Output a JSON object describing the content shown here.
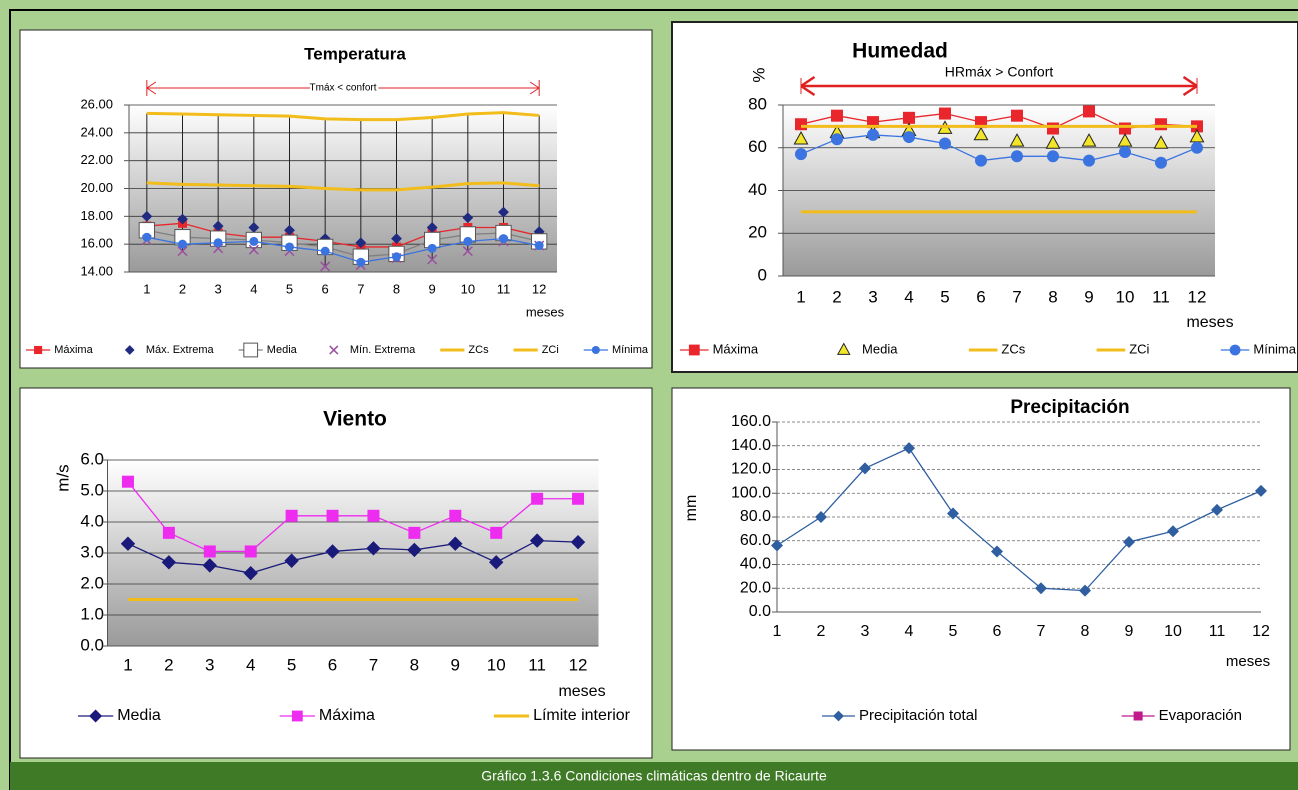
{
  "caption": "Gráfico 1.3.6 Condiciones climáticas dentro de Ricaurte",
  "chart_data": [
    {
      "type": "line",
      "title": "Temperatura",
      "annotation": "Tmáx < confort",
      "xlabel": "meses",
      "categories": [
        "1",
        "2",
        "3",
        "4",
        "5",
        "6",
        "7",
        "8",
        "9",
        "10",
        "11",
        "12"
      ],
      "ylim": [
        14,
        26
      ],
      "yticks": [
        {
          "value": 14,
          "label": "14.00"
        },
        {
          "value": 16,
          "label": "16.00"
        },
        {
          "value": 18,
          "label": "18.00"
        },
        {
          "value": 20,
          "label": "20.00"
        },
        {
          "value": 22,
          "label": "22.00"
        },
        {
          "value": 24,
          "label": "24.00"
        },
        {
          "value": 26,
          "label": "26.00"
        }
      ],
      "grid": true,
      "series": [
        {
          "name": "Máxima",
          "color": "#e8262b",
          "marker": "square",
          "line": true,
          "values": [
            17.3,
            17.5,
            16.8,
            16.5,
            16.5,
            16.2,
            15.8,
            15.8,
            16.8,
            17.2,
            17.2,
            16.6
          ]
        },
        {
          "name": "Máx. Extrema",
          "color": "#1f2a80",
          "marker": "diamond",
          "line": false,
          "values": [
            18.0,
            17.8,
            17.3,
            17.2,
            17.0,
            16.4,
            16.1,
            16.4,
            17.2,
            17.9,
            18.3,
            16.9
          ]
        },
        {
          "name": "Media",
          "color": "#808080",
          "marker": "box",
          "line": true,
          "values": [
            17.0,
            16.5,
            16.4,
            16.3,
            16.1,
            15.8,
            15.1,
            15.3,
            16.3,
            16.7,
            16.8,
            16.2
          ]
        },
        {
          "name": "Mín. Extrema",
          "color": "#9b4fa0",
          "marker": "x",
          "line": false,
          "values": [
            16.3,
            15.5,
            15.7,
            15.6,
            15.5,
            14.4,
            14.5,
            15.0,
            14.9,
            15.5,
            16.2,
            15.9
          ]
        },
        {
          "name": "ZCs",
          "color": "#f2bc1b",
          "marker": "none",
          "line": true,
          "values": [
            25.4,
            25.35,
            25.3,
            25.25,
            25.2,
            25.0,
            24.95,
            24.95,
            25.1,
            25.35,
            25.45,
            25.25
          ]
        },
        {
          "name": "ZCi",
          "color": "#f2bc1b",
          "marker": "none",
          "line": true,
          "values": [
            20.4,
            20.3,
            20.25,
            20.2,
            20.15,
            20.0,
            19.9,
            19.9,
            20.1,
            20.35,
            20.4,
            20.2
          ]
        },
        {
          "name": "Mínima",
          "color": "#3b73e0",
          "marker": "circle",
          "line": true,
          "values": [
            16.5,
            16.0,
            16.1,
            16.2,
            15.8,
            15.5,
            14.7,
            15.1,
            15.7,
            16.2,
            16.4,
            15.9
          ]
        }
      ]
    },
    {
      "type": "line",
      "title": "Humedad",
      "annotation": "HRmáx > Confort",
      "xlabel": "meses",
      "ylabel": "%",
      "categories": [
        "1",
        "2",
        "3",
        "4",
        "5",
        "6",
        "7",
        "8",
        "9",
        "10",
        "11",
        "12"
      ],
      "ylim": [
        0,
        80
      ],
      "yticks": [
        0,
        20,
        40,
        60,
        80
      ],
      "grid": true,
      "series": [
        {
          "name": "Máxima",
          "color": "#e8262b",
          "marker": "square",
          "line": true,
          "values": [
            71,
            75,
            72,
            74,
            76,
            72,
            75,
            69,
            77,
            69,
            71,
            70
          ]
        },
        {
          "name": "Media",
          "color": "#f2e52a",
          "marker": "triangle",
          "line": false,
          "values": [
            64,
            67,
            67,
            68,
            69,
            66,
            63,
            62,
            63,
            63,
            62,
            65
          ]
        },
        {
          "name": "ZCs",
          "color": "#f2bc1b",
          "marker": "none",
          "line": true,
          "values": [
            70,
            70,
            70,
            70,
            70,
            70,
            70,
            70,
            70,
            70,
            70,
            70
          ]
        },
        {
          "name": "ZCi",
          "color": "#f2bc1b",
          "marker": "none",
          "line": true,
          "values": [
            30,
            30,
            30,
            30,
            30,
            30,
            30,
            30,
            30,
            30,
            30,
            30
          ]
        },
        {
          "name": "Mínima",
          "color": "#3b73e0",
          "marker": "circle",
          "line": true,
          "values": [
            57,
            64,
            66,
            65,
            62,
            54,
            56,
            56,
            54,
            58,
            53,
            60
          ]
        }
      ]
    },
    {
      "type": "line",
      "title": "Viento",
      "xlabel": "meses",
      "ylabel": "m/s",
      "categories": [
        "1",
        "2",
        "3",
        "4",
        "5",
        "6",
        "7",
        "8",
        "9",
        "10",
        "11",
        "12"
      ],
      "ylim": [
        0,
        6
      ],
      "yticks": [
        {
          "value": 0,
          "label": "0.0"
        },
        {
          "value": 1,
          "label": "1.0"
        },
        {
          "value": 2,
          "label": "2.0"
        },
        {
          "value": 3,
          "label": "3.0"
        },
        {
          "value": 4,
          "label": "4.0"
        },
        {
          "value": 5,
          "label": "5.0"
        },
        {
          "value": 6,
          "label": "6.0"
        }
      ],
      "grid": true,
      "series": [
        {
          "name": "Media",
          "color": "#1a1a7a",
          "marker": "diamond",
          "line": true,
          "values": [
            3.3,
            2.7,
            2.6,
            2.35,
            2.75,
            3.05,
            3.15,
            3.1,
            3.3,
            2.7,
            3.4,
            3.35
          ]
        },
        {
          "name": "Máxima",
          "color": "#ee2cf0",
          "marker": "square",
          "line": true,
          "values": [
            5.3,
            3.65,
            3.05,
            3.05,
            4.2,
            4.2,
            4.2,
            3.65,
            4.2,
            3.65,
            4.75,
            4.75
          ]
        },
        {
          "name": "Límite interior",
          "color": "#f2bc1b",
          "marker": "none",
          "line": true,
          "values": [
            1.5,
            1.5,
            1.5,
            1.5,
            1.5,
            1.5,
            1.5,
            1.5,
            1.5,
            1.5,
            1.5,
            1.5
          ]
        }
      ]
    },
    {
      "type": "line",
      "title": "Precipitación",
      "xlabel": "meses",
      "ylabel": "mm",
      "categories": [
        "1",
        "2",
        "3",
        "4",
        "5",
        "6",
        "7",
        "8",
        "9",
        "10",
        "11",
        "12"
      ],
      "ylim": [
        0,
        160
      ],
      "yticks": [
        {
          "value": 0,
          "label": "0.0"
        },
        {
          "value": 20,
          "label": "20.0"
        },
        {
          "value": 40,
          "label": "40.0"
        },
        {
          "value": 60,
          "label": "60.0"
        },
        {
          "value": 80,
          "label": "80.0"
        },
        {
          "value": 100,
          "label": "100.0"
        },
        {
          "value": 120,
          "label": "120.0"
        },
        {
          "value": 140,
          "label": "140.0"
        },
        {
          "value": 160,
          "label": "160.0"
        }
      ],
      "grid": true,
      "series": [
        {
          "name": "Precipitación total",
          "color": "#2f5fa0",
          "marker": "diamond",
          "line": true,
          "values": [
            56,
            80,
            121,
            138,
            83,
            51,
            20,
            18,
            59,
            68,
            86,
            102
          ]
        },
        {
          "name": "Evaporación",
          "color": "#c01a8c",
          "marker": "square",
          "line": true,
          "values": [
            null,
            null,
            null,
            null,
            null,
            null,
            null,
            null,
            null,
            null,
            null,
            null
          ]
        }
      ]
    }
  ]
}
